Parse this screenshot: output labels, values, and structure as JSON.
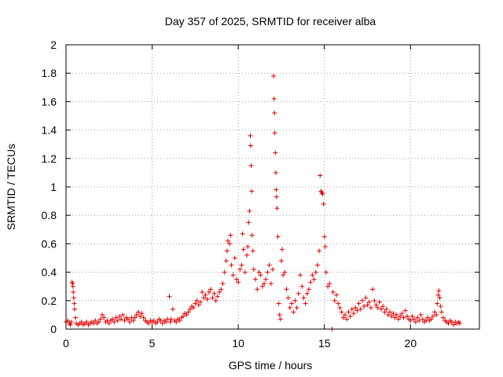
{
  "chart_data": {
    "type": "scatter",
    "title": "Day 357 of 2025, SRMTID for receiver alba",
    "xlabel": "GPS time / hours",
    "ylabel": "SRMTID / TECUs",
    "xlim": [
      0,
      24
    ],
    "ylim": [
      0,
      2
    ],
    "xticks": [
      0,
      5,
      10,
      15,
      20
    ],
    "xtick_labels": [
      "0",
      "5",
      "10",
      "15",
      "20"
    ],
    "yticks": [
      0,
      0.2,
      0.4,
      0.6,
      0.8,
      1,
      1.2,
      1.4,
      1.6,
      1.8,
      2
    ],
    "ytick_labels": [
      "0",
      "0.2",
      "0.4",
      "0.6",
      "0.8",
      "1",
      "1.2",
      "1.4",
      "1.6",
      "1.8",
      "2"
    ],
    "grid": true,
    "marker": "+",
    "color": "#e00000",
    "series": [
      {
        "name": "SRMTID",
        "points": [
          [
            0.0,
            0.05
          ],
          [
            0.1,
            0.06
          ],
          [
            0.2,
            0.04
          ],
          [
            0.25,
            0.03
          ],
          [
            0.3,
            0.05
          ],
          [
            0.35,
            0.33
          ],
          [
            0.38,
            0.32
          ],
          [
            0.4,
            0.3
          ],
          [
            0.42,
            0.26
          ],
          [
            0.45,
            0.22
          ],
          [
            0.48,
            0.18
          ],
          [
            0.5,
            0.14
          ],
          [
            0.55,
            0.08
          ],
          [
            0.6,
            0.04
          ],
          [
            0.7,
            0.03
          ],
          [
            0.8,
            0.04
          ],
          [
            0.9,
            0.05
          ],
          [
            1.0,
            0.03
          ],
          [
            1.1,
            0.04
          ],
          [
            1.2,
            0.05
          ],
          [
            1.3,
            0.03
          ],
          [
            1.4,
            0.04
          ],
          [
            1.5,
            0.05
          ],
          [
            1.6,
            0.04
          ],
          [
            1.7,
            0.06
          ],
          [
            1.8,
            0.04
          ],
          [
            1.9,
            0.05
          ],
          [
            2.0,
            0.07
          ],
          [
            2.1,
            0.1
          ],
          [
            2.2,
            0.08
          ],
          [
            2.3,
            0.05
          ],
          [
            2.4,
            0.06
          ],
          [
            2.5,
            0.04
          ],
          [
            2.6,
            0.06
          ],
          [
            2.7,
            0.07
          ],
          [
            2.8,
            0.05
          ],
          [
            2.9,
            0.08
          ],
          [
            3.0,
            0.06
          ],
          [
            3.1,
            0.09
          ],
          [
            3.2,
            0.07
          ],
          [
            3.3,
            0.1
          ],
          [
            3.4,
            0.06
          ],
          [
            3.5,
            0.08
          ],
          [
            3.6,
            0.07
          ],
          [
            3.7,
            0.05
          ],
          [
            3.8,
            0.08
          ],
          [
            3.9,
            0.06
          ],
          [
            4.0,
            0.08
          ],
          [
            4.1,
            0.1
          ],
          [
            4.2,
            0.12
          ],
          [
            4.3,
            0.09
          ],
          [
            4.4,
            0.11
          ],
          [
            4.5,
            0.08
          ],
          [
            4.6,
            0.06
          ],
          [
            4.7,
            0.05
          ],
          [
            4.8,
            0.04
          ],
          [
            4.9,
            0.06
          ],
          [
            5.0,
            0.05
          ],
          [
            5.1,
            0.06
          ],
          [
            5.2,
            0.04
          ],
          [
            5.3,
            0.05
          ],
          [
            5.4,
            0.07
          ],
          [
            5.5,
            0.06
          ],
          [
            5.6,
            0.04
          ],
          [
            5.7,
            0.06
          ],
          [
            5.8,
            0.05
          ],
          [
            5.9,
            0.07
          ],
          [
            6.0,
            0.23
          ],
          [
            6.05,
            0.05
          ],
          [
            6.1,
            0.07
          ],
          [
            6.2,
            0.14
          ],
          [
            6.3,
            0.06
          ],
          [
            6.4,
            0.05
          ],
          [
            6.5,
            0.07
          ],
          [
            6.6,
            0.06
          ],
          [
            6.7,
            0.08
          ],
          [
            6.8,
            0.09
          ],
          [
            6.9,
            0.11
          ],
          [
            7.0,
            0.1
          ],
          [
            7.1,
            0.12
          ],
          [
            7.2,
            0.14
          ],
          [
            7.3,
            0.16
          ],
          [
            7.4,
            0.15
          ],
          [
            7.5,
            0.18
          ],
          [
            7.6,
            0.2
          ],
          [
            7.7,
            0.17
          ],
          [
            7.8,
            0.19
          ],
          [
            7.9,
            0.26
          ],
          [
            8.0,
            0.22
          ],
          [
            8.1,
            0.24
          ],
          [
            8.2,
            0.21
          ],
          [
            8.3,
            0.26
          ],
          [
            8.4,
            0.28
          ],
          [
            8.5,
            0.22
          ],
          [
            8.6,
            0.25
          ],
          [
            8.7,
            0.2
          ],
          [
            8.8,
            0.23
          ],
          [
            8.9,
            0.26
          ],
          [
            9.0,
            0.28
          ],
          [
            9.1,
            0.32
          ],
          [
            9.2,
            0.4
          ],
          [
            9.3,
            0.48
          ],
          [
            9.35,
            0.55
          ],
          [
            9.4,
            0.62
          ],
          [
            9.5,
            0.6
          ],
          [
            9.55,
            0.66
          ],
          [
            9.6,
            0.45
          ],
          [
            9.7,
            0.38
          ],
          [
            9.8,
            0.5
          ],
          [
            9.9,
            0.35
          ],
          [
            10.0,
            0.33
          ],
          [
            10.1,
            0.42
          ],
          [
            10.2,
            0.45
          ],
          [
            10.25,
            0.67
          ],
          [
            10.3,
            0.56
          ],
          [
            10.4,
            0.4
          ],
          [
            10.5,
            0.52
          ],
          [
            10.55,
            0.58
          ],
          [
            10.6,
            0.75
          ],
          [
            10.65,
            0.83
          ],
          [
            10.7,
            1.36
          ],
          [
            10.72,
            1.29
          ],
          [
            10.75,
            1.15
          ],
          [
            10.78,
            0.97
          ],
          [
            10.8,
            0.66
          ],
          [
            10.85,
            0.55
          ],
          [
            10.9,
            0.42
          ],
          [
            11.0,
            0.35
          ],
          [
            11.1,
            0.28
          ],
          [
            11.2,
            0.4
          ],
          [
            11.3,
            0.38
          ],
          [
            11.4,
            0.3
          ],
          [
            11.5,
            0.32
          ],
          [
            11.6,
            0.35
          ],
          [
            11.7,
            0.4
          ],
          [
            11.8,
            0.45
          ],
          [
            11.9,
            0.32
          ],
          [
            12.0,
            0.42
          ],
          [
            12.05,
            1.78
          ],
          [
            12.08,
            1.62
          ],
          [
            12.1,
            1.52
          ],
          [
            12.12,
            1.38
          ],
          [
            12.15,
            1.24
          ],
          [
            12.18,
            1.1
          ],
          [
            12.2,
            0.98
          ],
          [
            12.22,
            0.93
          ],
          [
            12.25,
            0.85
          ],
          [
            12.3,
            0.65
          ],
          [
            12.35,
            0.18
          ],
          [
            12.4,
            0.1
          ],
          [
            12.45,
            0.07
          ],
          [
            12.5,
            0.48
          ],
          [
            12.55,
            0.56
          ],
          [
            12.6,
            0.38
          ],
          [
            12.7,
            0.4
          ],
          [
            12.8,
            0.28
          ],
          [
            12.9,
            0.22
          ],
          [
            13.0,
            0.15
          ],
          [
            13.1,
            0.18
          ],
          [
            13.2,
            0.12
          ],
          [
            13.3,
            0.2
          ],
          [
            13.4,
            0.15
          ],
          [
            13.5,
            0.25
          ],
          [
            13.6,
            0.38
          ],
          [
            13.7,
            0.3
          ],
          [
            13.8,
            0.22
          ],
          [
            13.9,
            0.18
          ],
          [
            14.0,
            0.25
          ],
          [
            14.1,
            0.28
          ],
          [
            14.2,
            0.33
          ],
          [
            14.3,
            0.38
          ],
          [
            14.4,
            0.35
          ],
          [
            14.5,
            0.4
          ],
          [
            14.6,
            0.45
          ],
          [
            14.7,
            0.55
          ],
          [
            14.75,
            1.08
          ],
          [
            14.8,
            0.97
          ],
          [
            14.85,
            0.96
          ],
          [
            14.9,
            0.95
          ],
          [
            14.95,
            0.88
          ],
          [
            15.0,
            0.65
          ],
          [
            15.05,
            0.58
          ],
          [
            15.1,
            0.4
          ],
          [
            15.2,
            0.3
          ],
          [
            15.3,
            0.32
          ],
          [
            15.45,
            0.0
          ],
          [
            15.5,
            0.26
          ],
          [
            15.6,
            0.2
          ],
          [
            15.7,
            0.24
          ],
          [
            15.8,
            0.18
          ],
          [
            15.9,
            0.15
          ],
          [
            16.0,
            0.12
          ],
          [
            16.1,
            0.08
          ],
          [
            16.2,
            0.1
          ],
          [
            16.3,
            0.07
          ],
          [
            16.4,
            0.12
          ],
          [
            16.5,
            0.09
          ],
          [
            16.6,
            0.14
          ],
          [
            16.7,
            0.11
          ],
          [
            16.8,
            0.15
          ],
          [
            16.9,
            0.13
          ],
          [
            17.0,
            0.18
          ],
          [
            17.1,
            0.14
          ],
          [
            17.2,
            0.2
          ],
          [
            17.3,
            0.16
          ],
          [
            17.4,
            0.22
          ],
          [
            17.5,
            0.17
          ],
          [
            17.6,
            0.19
          ],
          [
            17.7,
            0.15
          ],
          [
            17.8,
            0.28
          ],
          [
            17.9,
            0.2
          ],
          [
            18.0,
            0.17
          ],
          [
            18.1,
            0.15
          ],
          [
            18.2,
            0.19
          ],
          [
            18.3,
            0.14
          ],
          [
            18.4,
            0.16
          ],
          [
            18.5,
            0.12
          ],
          [
            18.6,
            0.14
          ],
          [
            18.7,
            0.1
          ],
          [
            18.8,
            0.12
          ],
          [
            18.9,
            0.09
          ],
          [
            19.0,
            0.11
          ],
          [
            19.1,
            0.08
          ],
          [
            19.2,
            0.1
          ],
          [
            19.3,
            0.07
          ],
          [
            19.4,
            0.09
          ],
          [
            19.5,
            0.11
          ],
          [
            19.6,
            0.08
          ],
          [
            19.7,
            0.13
          ],
          [
            19.8,
            0.09
          ],
          [
            19.9,
            0.07
          ],
          [
            20.0,
            0.06
          ],
          [
            20.1,
            0.09
          ],
          [
            20.2,
            0.07
          ],
          [
            20.3,
            0.05
          ],
          [
            20.4,
            0.08
          ],
          [
            20.5,
            0.06
          ],
          [
            20.6,
            0.1
          ],
          [
            20.7,
            0.07
          ],
          [
            20.8,
            0.05
          ],
          [
            20.9,
            0.06
          ],
          [
            21.0,
            0.08
          ],
          [
            21.1,
            0.06
          ],
          [
            21.2,
            0.07
          ],
          [
            21.3,
            0.09
          ],
          [
            21.4,
            0.12
          ],
          [
            21.5,
            0.1
          ],
          [
            21.55,
            0.18
          ],
          [
            21.6,
            0.24
          ],
          [
            21.65,
            0.27
          ],
          [
            21.7,
            0.22
          ],
          [
            21.75,
            0.16
          ],
          [
            21.8,
            0.12
          ],
          [
            21.9,
            0.08
          ],
          [
            22.0,
            0.06
          ],
          [
            22.1,
            0.05
          ],
          [
            22.2,
            0.04
          ],
          [
            22.3,
            0.06
          ],
          [
            22.4,
            0.05
          ],
          [
            22.5,
            0.03
          ],
          [
            22.6,
            0.05
          ],
          [
            22.7,
            0.04
          ],
          [
            22.8,
            0.05
          ],
          [
            22.85,
            0.04
          ]
        ]
      }
    ]
  }
}
